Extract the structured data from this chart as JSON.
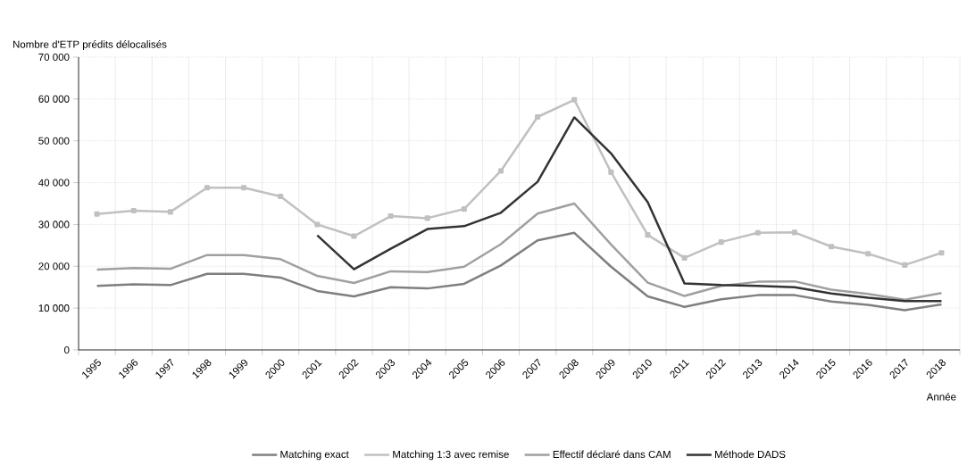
{
  "chart_data": {
    "type": "line",
    "ylabel": "Nombre d'ETP prédits délocalisés",
    "xlabel": "Année",
    "categories": [
      "1995",
      "1996",
      "1997",
      "1998",
      "1999",
      "2000",
      "2001",
      "2002",
      "2003",
      "2004",
      "2005",
      "2006",
      "2007",
      "2008",
      "2009",
      "2010",
      "2011",
      "2012",
      "2013",
      "2014",
      "2015",
      "2016",
      "2017",
      "2018"
    ],
    "series": [
      {
        "name": "Matching exact",
        "color": "#7f7f7f",
        "values": [
          15300,
          15700,
          15500,
          18200,
          18200,
          17300,
          14100,
          12800,
          15000,
          14700,
          15800,
          20200,
          26200,
          28000,
          19900,
          12800,
          10300,
          12100,
          13100,
          13100,
          11600,
          10800,
          9500,
          10900
        ]
      },
      {
        "name": "Matching 1:3 avec remise",
        "color": "#c0c0c0",
        "marker": "square",
        "values": [
          32500,
          33300,
          33000,
          38800,
          38800,
          36700,
          30000,
          27200,
          32000,
          31500,
          33700,
          42800,
          55700,
          59800,
          42500,
          27500,
          22000,
          25800,
          28000,
          28100,
          24700,
          23000,
          20300,
          23200
        ]
      },
      {
        "name": "Effectif déclaré dans CAM",
        "color": "#a0a0a0",
        "values": [
          19200,
          19600,
          19400,
          22700,
          22700,
          21700,
          17700,
          16000,
          18800,
          18600,
          19900,
          25300,
          32600,
          35000,
          25200,
          16100,
          12900,
          15300,
          16300,
          16400,
          14400,
          13400,
          12000,
          13600
        ]
      },
      {
        "name": "Méthode DADS",
        "color": "#333333",
        "values": [
          null,
          null,
          null,
          null,
          null,
          null,
          27400,
          19300,
          24200,
          28900,
          29600,
          32800,
          40200,
          55600,
          47000,
          35300,
          15900,
          15500,
          15300,
          15000,
          13500,
          12500,
          11700,
          11700
        ]
      }
    ],
    "ylim": [
      0,
      70000
    ],
    "yticks": [
      0,
      {
        "value": 10000,
        "label": "10 000"
      },
      {
        "value": 20000,
        "label": "20 000"
      },
      {
        "value": 30000,
        "label": "30 000"
      },
      {
        "value": 40000,
        "label": "40 000"
      },
      {
        "value": 50000,
        "label": "50 000"
      },
      {
        "value": 60000,
        "label": "60 000"
      },
      {
        "value": 70000,
        "label": "70 000"
      }
    ],
    "grid": true,
    "legend": "bottom",
    "line_style": "solid",
    "marker": "none"
  }
}
